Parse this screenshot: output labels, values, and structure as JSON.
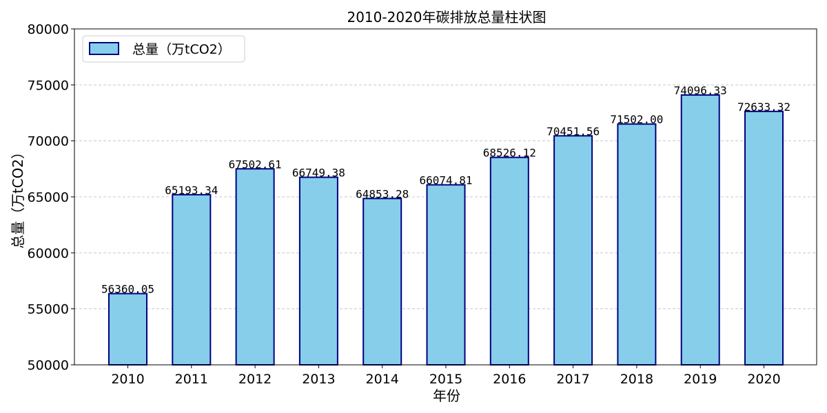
{
  "colors": {
    "bar_fill": "#87CEEB",
    "bar_edge": "#000080",
    "grid": "#c8c8c8",
    "axis": "#000000"
  },
  "chart_data": {
    "type": "bar",
    "title": "2010-2020年碳排放总量柱状图",
    "xlabel": "年份",
    "ylabel": "总量（万tCO2）",
    "categories": [
      "2010",
      "2011",
      "2012",
      "2013",
      "2014",
      "2015",
      "2016",
      "2017",
      "2018",
      "2019",
      "2020"
    ],
    "series": [
      {
        "name": "总量（万tCO2）",
        "values": [
          56360.05,
          65193.34,
          67502.61,
          66749.38,
          64853.28,
          66074.81,
          68526.12,
          70451.56,
          71502.0,
          74096.33,
          72633.32
        ],
        "value_labels": [
          "56360.05",
          "65193.34",
          "67502.61",
          "66749.38",
          "64853.28",
          "66074.81",
          "68526.12",
          "70451.56",
          "71502.00",
          "74096.33",
          "72633.32"
        ]
      }
    ],
    "ylim": [
      50000,
      80000
    ],
    "yticks": [
      50000,
      55000,
      60000,
      65000,
      70000,
      75000,
      80000
    ],
    "grid": "y-dashed",
    "legend": "top-left"
  }
}
